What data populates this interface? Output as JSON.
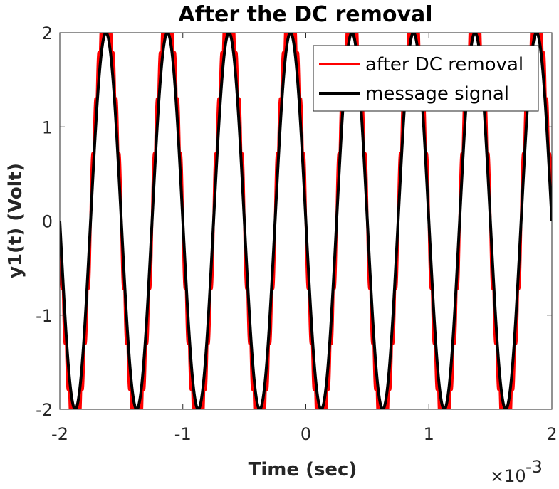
{
  "chart_data": {
    "type": "line",
    "title": "After the DC removal",
    "xlabel": "Time (sec)",
    "ylabel": "y1(t)  (Volt)",
    "x_exponent": {
      "base": "×10",
      "power": "-3"
    },
    "xlim": [
      -0.002,
      0.002
    ],
    "ylim": [
      -2,
      2
    ],
    "x_ticks": [
      -0.002,
      -0.001,
      0,
      0.001,
      0.002
    ],
    "x_tick_labels": [
      "-2",
      "-1",
      "0",
      "1",
      "2"
    ],
    "y_ticks": [
      -2,
      -1,
      0,
      1,
      2
    ],
    "y_tick_labels": [
      "-2",
      "-1",
      "0",
      "1",
      "2"
    ],
    "grid": false,
    "legend_position": "top-right",
    "series": [
      {
        "name": "after DC removal",
        "color": "#ff0000",
        "message_frequency_hz": 2000,
        "amplitude": 2,
        "ripple_frequency_hz": 20000,
        "x_start": -0.002,
        "x_end": 0.002
      },
      {
        "name": "message signal",
        "color": "#000000",
        "frequency_hz": 2000,
        "amplitude": 2,
        "x_start": -0.002,
        "x_end": 0.002
      }
    ]
  }
}
